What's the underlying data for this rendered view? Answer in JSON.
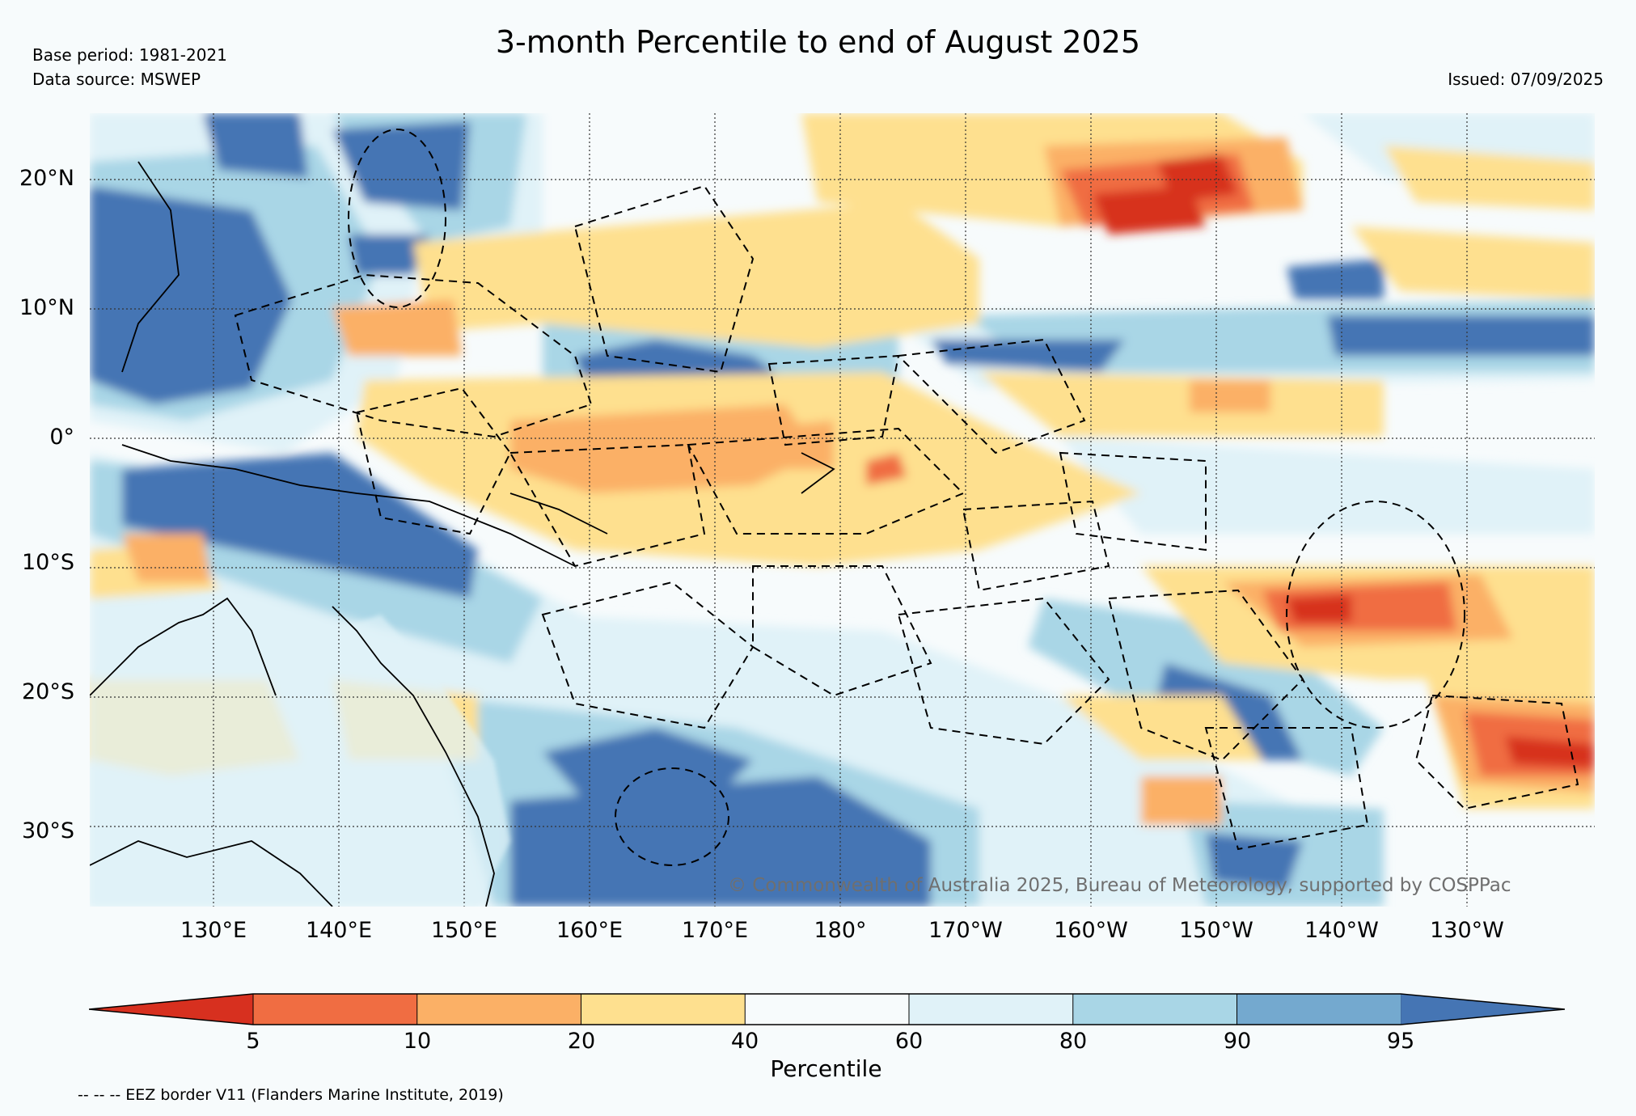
{
  "header": {
    "title": "3-month Percentile to end of August 2025",
    "base_period": "Base period: 1981-2021",
    "data_source": "Data source: MSWEP",
    "issued": "Issued: 07/09/2025"
  },
  "map": {
    "lat_labels": [
      "20°N",
      "10°N",
      "0°",
      "10°S",
      "20°S",
      "30°S"
    ],
    "lon_labels": [
      "130°E",
      "140°E",
      "150°E",
      "160°E",
      "170°E",
      "180°",
      "170°W",
      "160°W",
      "150°W",
      "140°W",
      "130°W"
    ],
    "copyright": "© Commonwealth of Australia 2025, Bureau of Meteorology, supported by COSPPac"
  },
  "colorbar": {
    "ticks": [
      "5",
      "10",
      "20",
      "40",
      "60",
      "80",
      "90",
      "95"
    ],
    "label": "Percentile",
    "colors": [
      "#d7301f",
      "#f06d42",
      "#fbb066",
      "#fee08f",
      "#f7fbfc",
      "#e0f2f8",
      "#a9d6e6",
      "#74a9cf",
      "#4575b4"
    ]
  },
  "footnote": "-- -- -- EEZ border V11 (Flanders Marine Institute, 2019)"
}
